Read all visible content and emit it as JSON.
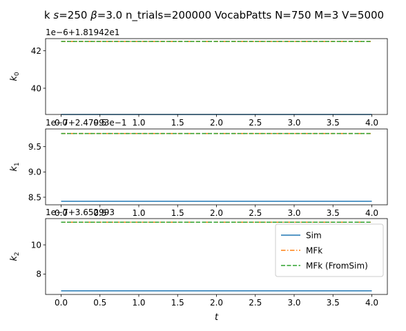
{
  "suptitle": "k $s$=250 $\\beta$=3.0 n_trials=200000 VocabPatts N=750 M=3 V=5000",
  "suptitle_parts": {
    "a": "k ",
    "s_sym": "s",
    "b": "=250 ",
    "beta_sym": "β",
    "c": "=3.0 n_trials=200000 VocabPatts N=750 M=3 V=5000"
  },
  "chart_data": [
    {
      "type": "line",
      "ylabel": "k",
      "ylabel_sub": "0",
      "xlabel": "",
      "offset_text": "1e−6+1.81942e1",
      "x": [
        0.0,
        4.0
      ],
      "xlim": [
        -0.2,
        4.2
      ],
      "ylim": [
        38.6,
        42.65
      ],
      "x_ticks": [
        0.0,
        0.5,
        1.0,
        1.5,
        2.0,
        2.5,
        3.0,
        3.5,
        4.0
      ],
      "x_tick_labels": [
        "0.0",
        "0.5",
        "1.0",
        "1.5",
        "2.0",
        "2.5",
        "3.0",
        "3.5",
        "4.0"
      ],
      "y_ticks": [
        40,
        42
      ],
      "y_tick_labels": [
        "40",
        "42"
      ],
      "series": [
        {
          "name": "Sim",
          "values": [
            38.6,
            38.6
          ],
          "color": "#1f77b4",
          "style": "solid"
        },
        {
          "name": "MFk",
          "values": [
            42.5,
            42.5
          ],
          "color": "#ff7f0e",
          "style": "dashdot"
        },
        {
          "name": "MFk (FromSim)",
          "values": [
            42.5,
            42.5
          ],
          "color": "#2ca02c",
          "style": "dashed"
        }
      ],
      "legend": false
    },
    {
      "type": "line",
      "ylabel": "k",
      "ylabel_sub": "1",
      "xlabel": "",
      "offset_text": "1e−7+2.47993e−1",
      "x": [
        0.0,
        4.0
      ],
      "xlim": [
        -0.2,
        4.2
      ],
      "ylim": [
        8.35,
        9.85
      ],
      "x_ticks": [
        0.0,
        0.5,
        1.0,
        1.5,
        2.0,
        2.5,
        3.0,
        3.5,
        4.0
      ],
      "x_tick_labels": [
        "0.0",
        "0.5",
        "1.0",
        "1.5",
        "2.0",
        "2.5",
        "3.0",
        "3.5",
        "4.0"
      ],
      "y_ticks": [
        8.5,
        9.0,
        9.5
      ],
      "y_tick_labels": [
        "8.5",
        "9.0",
        "9.5"
      ],
      "series": [
        {
          "name": "Sim",
          "values": [
            8.42,
            8.42
          ],
          "color": "#1f77b4",
          "style": "solid"
        },
        {
          "name": "MFk",
          "values": [
            9.76,
            9.76
          ],
          "color": "#ff7f0e",
          "style": "dashdot"
        },
        {
          "name": "MFk (FromSim)",
          "values": [
            9.76,
            9.76
          ],
          "color": "#2ca02c",
          "style": "dashed"
        }
      ],
      "legend": false
    },
    {
      "type": "line",
      "ylabel": "k",
      "ylabel_sub": "2",
      "xlabel": "t",
      "offset_text": "1e−7+3.652993",
      "x": [
        0.0,
        4.0
      ],
      "xlim": [
        -0.2,
        4.2
      ],
      "ylim": [
        6.6,
        11.8
      ],
      "x_ticks": [
        0.0,
        0.5,
        1.0,
        1.5,
        2.0,
        2.5,
        3.0,
        3.5,
        4.0
      ],
      "x_tick_labels": [
        "0.0",
        "0.5",
        "1.0",
        "1.5",
        "2.0",
        "2.5",
        "3.0",
        "3.5",
        "4.0"
      ],
      "y_ticks": [
        8,
        10
      ],
      "y_tick_labels": [
        "8",
        "10"
      ],
      "series": [
        {
          "name": "Sim",
          "values": [
            6.85,
            6.85
          ],
          "color": "#1f77b4",
          "style": "solid"
        },
        {
          "name": "MFk",
          "values": [
            11.55,
            11.55
          ],
          "color": "#ff7f0e",
          "style": "dashdot"
        },
        {
          "name": "MFk (FromSim)",
          "values": [
            11.55,
            11.55
          ],
          "color": "#2ca02c",
          "style": "dashed"
        }
      ],
      "legend": true,
      "legend_loc": "upper-right"
    }
  ]
}
